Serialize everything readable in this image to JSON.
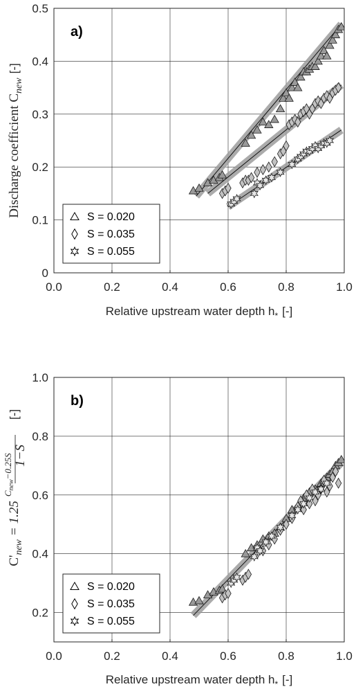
{
  "chart_data": [
    {
      "type": "scatter",
      "panel_label": "a)",
      "xlabel": "Relative upstream water depth h",
      "xlabel_sub": "*",
      "xlabel_unit": "[-]",
      "ylabel": "Discharge coefficient C",
      "ylabel_sub": "new",
      "ylabel_unit": "[-]",
      "xlim": [
        0.0,
        1.0
      ],
      "ylim": [
        0.0,
        0.5
      ],
      "xticks": [
        "0.0",
        "0.2",
        "0.4",
        "0.6",
        "0.8",
        "1.0"
      ],
      "yticks": [
        "0",
        "0.1",
        "0.2",
        "0.3",
        "0.4",
        "0.5"
      ],
      "grid": true,
      "legend_position": "bottom-left",
      "series": [
        {
          "name": "S = 0.020",
          "marker": "triangle",
          "fit": [
            [
              0.49,
              0.145
            ],
            [
              0.99,
              0.47
            ]
          ],
          "x": [
            0.48,
            0.5,
            0.53,
            0.55,
            0.57,
            0.58,
            0.66,
            0.68,
            0.7,
            0.72,
            0.74,
            0.76,
            0.78,
            0.79,
            0.8,
            0.81,
            0.82,
            0.83,
            0.84,
            0.85,
            0.86,
            0.87,
            0.88,
            0.89,
            0.9,
            0.91,
            0.92,
            0.93,
            0.94,
            0.95,
            0.96,
            0.97,
            0.98,
            0.99
          ],
          "y": [
            0.155,
            0.16,
            0.17,
            0.175,
            0.18,
            0.185,
            0.245,
            0.26,
            0.27,
            0.285,
            0.28,
            0.29,
            0.31,
            0.33,
            0.34,
            0.33,
            0.35,
            0.36,
            0.35,
            0.37,
            0.38,
            0.38,
            0.385,
            0.39,
            0.39,
            0.4,
            0.41,
            0.42,
            0.41,
            0.43,
            0.44,
            0.45,
            0.46,
            0.465
          ]
        },
        {
          "name": "S = 0.035",
          "marker": "diamond",
          "fit": [
            [
              0.53,
              0.15
            ],
            [
              0.99,
              0.355
            ]
          ],
          "x": [
            0.58,
            0.59,
            0.6,
            0.65,
            0.66,
            0.67,
            0.68,
            0.7,
            0.72,
            0.74,
            0.76,
            0.78,
            0.79,
            0.8,
            0.81,
            0.82,
            0.83,
            0.84,
            0.85,
            0.86,
            0.87,
            0.88,
            0.89,
            0.9,
            0.91,
            0.92,
            0.93,
            0.94,
            0.95,
            0.96,
            0.97,
            0.98
          ],
          "y": [
            0.15,
            0.155,
            0.16,
            0.17,
            0.175,
            0.175,
            0.18,
            0.19,
            0.195,
            0.2,
            0.21,
            0.225,
            0.23,
            0.24,
            0.28,
            0.285,
            0.29,
            0.285,
            0.3,
            0.305,
            0.31,
            0.3,
            0.31,
            0.32,
            0.325,
            0.32,
            0.33,
            0.335,
            0.33,
            0.34,
            0.345,
            0.35
          ]
        },
        {
          "name": "S = 0.055",
          "marker": "star",
          "fit": [
            [
              0.6,
              0.125
            ],
            [
              0.99,
              0.27
            ]
          ],
          "x": [
            0.61,
            0.62,
            0.63,
            0.69,
            0.7,
            0.71,
            0.73,
            0.75,
            0.78,
            0.82,
            0.84,
            0.85,
            0.86,
            0.87,
            0.88,
            0.89,
            0.9,
            0.91,
            0.92,
            0.93,
            0.94,
            0.95
          ],
          "y": [
            0.13,
            0.135,
            0.14,
            0.15,
            0.17,
            0.165,
            0.175,
            0.18,
            0.19,
            0.205,
            0.215,
            0.22,
            0.225,
            0.23,
            0.23,
            0.235,
            0.24,
            0.235,
            0.24,
            0.245,
            0.245,
            0.25
          ]
        }
      ]
    },
    {
      "type": "scatter",
      "panel_label": "b)",
      "xlabel": "Relative upstream water depth h",
      "xlabel_sub": "*",
      "xlabel_unit": "[-]",
      "ylabel_main": "C'",
      "ylabel_sub": "new",
      "ylabel_eq": "= 1.25",
      "ylabel_num": "C",
      "ylabel_num_sub": "new",
      "ylabel_num_rest": "−0.25S",
      "ylabel_den": "1−S",
      "ylabel_unit": "[-]",
      "xlim": [
        0.0,
        1.0
      ],
      "ylim": [
        0.1,
        1.0
      ],
      "xticks": [
        "0.0",
        "0.2",
        "0.4",
        "0.6",
        "0.8",
        "1.0"
      ],
      "yticks": [
        "0.2",
        "0.4",
        "0.6",
        "0.8",
        "1.0"
      ],
      "grid": true,
      "legend_position": "bottom-left",
      "fit": [
        [
          0.48,
          0.19
        ],
        [
          0.99,
          0.71
        ]
      ],
      "series": [
        {
          "name": "S = 0.020",
          "marker": "triangle",
          "x": [
            0.48,
            0.5,
            0.53,
            0.55,
            0.57,
            0.58,
            0.66,
            0.68,
            0.7,
            0.72,
            0.74,
            0.76,
            0.78,
            0.8,
            0.82,
            0.84,
            0.85,
            0.86,
            0.87,
            0.88,
            0.9,
            0.92,
            0.93,
            0.94,
            0.95,
            0.96,
            0.97,
            0.98,
            0.99
          ],
          "y": [
            0.235,
            0.24,
            0.26,
            0.27,
            0.275,
            0.28,
            0.4,
            0.42,
            0.43,
            0.45,
            0.46,
            0.47,
            0.49,
            0.52,
            0.55,
            0.56,
            0.57,
            0.59,
            0.6,
            0.61,
            0.62,
            0.64,
            0.65,
            0.66,
            0.67,
            0.68,
            0.7,
            0.71,
            0.72
          ]
        },
        {
          "name": "S = 0.035",
          "marker": "diamond",
          "x": [
            0.58,
            0.59,
            0.6,
            0.65,
            0.66,
            0.67,
            0.7,
            0.72,
            0.74,
            0.76,
            0.78,
            0.8,
            0.82,
            0.84,
            0.85,
            0.86,
            0.87,
            0.88,
            0.89,
            0.9,
            0.91,
            0.92,
            0.93,
            0.94,
            0.95,
            0.96,
            0.97,
            0.98
          ],
          "y": [
            0.25,
            0.26,
            0.265,
            0.31,
            0.32,
            0.33,
            0.4,
            0.41,
            0.43,
            0.45,
            0.48,
            0.5,
            0.52,
            0.56,
            0.58,
            0.55,
            0.6,
            0.57,
            0.62,
            0.58,
            0.6,
            0.62,
            0.65,
            0.61,
            0.63,
            0.66,
            0.68,
            0.64
          ]
        },
        {
          "name": "S = 0.055",
          "marker": "star",
          "x": [
            0.61,
            0.62,
            0.63,
            0.69,
            0.7,
            0.71,
            0.73,
            0.75,
            0.78,
            0.82,
            0.84,
            0.86,
            0.88,
            0.9,
            0.92,
            0.94
          ],
          "y": [
            0.3,
            0.31,
            0.32,
            0.39,
            0.42,
            0.41,
            0.44,
            0.46,
            0.49,
            0.53,
            0.55,
            0.57,
            0.59,
            0.61,
            0.62,
            0.64
          ]
        }
      ]
    }
  ]
}
